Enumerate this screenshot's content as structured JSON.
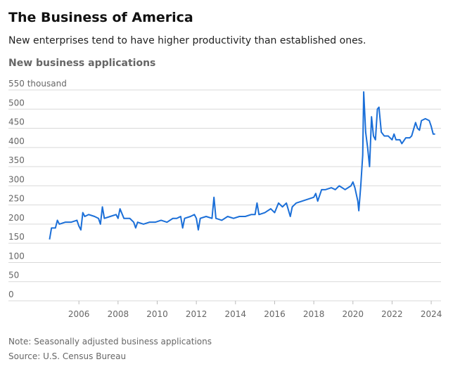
{
  "chart_data": {
    "type": "line",
    "title": "The Business of America",
    "subtitle": "New enterprises tend to have higher productivity than established ones.",
    "chart_title": "New business applications",
    "note": "Note: Seasonally adjusted business applications",
    "source": "Source: U.S. Census Bureau",
    "xlim": [
      2002.4,
      2024.5
    ],
    "ylim": [
      0,
      550
    ],
    "xticks": [
      2006,
      2008,
      2010,
      2012,
      2014,
      2016,
      2018,
      2020,
      2022,
      2024
    ],
    "yticks": [
      0,
      50,
      100,
      150,
      200,
      250,
      300,
      350,
      400,
      450,
      500,
      {
        "value": 550,
        "label": "550 thousand"
      }
    ],
    "grid": true,
    "x": [
      2004.5,
      2004.6,
      2004.8,
      2004.9,
      2005.0,
      2005.3,
      2005.6,
      2005.9,
      2006.0,
      2006.1,
      2006.2,
      2006.3,
      2006.5,
      2006.8,
      2007.0,
      2007.1,
      2007.2,
      2007.3,
      2007.6,
      2007.9,
      2008.0,
      2008.1,
      2008.3,
      2008.6,
      2008.8,
      2008.9,
      2009.0,
      2009.3,
      2009.6,
      2009.9,
      2010.2,
      2010.5,
      2010.8,
      2011.0,
      2011.2,
      2011.3,
      2011.4,
      2011.7,
      2011.9,
      2012.0,
      2012.1,
      2012.2,
      2012.5,
      2012.8,
      2012.9,
      2013.0,
      2013.3,
      2013.6,
      2013.9,
      2014.2,
      2014.5,
      2014.8,
      2015.0,
      2015.1,
      2015.2,
      2015.5,
      2015.8,
      2016.0,
      2016.2,
      2016.4,
      2016.6,
      2016.8,
      2016.9,
      2017.1,
      2017.4,
      2017.7,
      2018.0,
      2018.1,
      2018.2,
      2018.4,
      2018.6,
      2018.9,
      2019.1,
      2019.3,
      2019.6,
      2019.9,
      2020.0,
      2020.1,
      2020.25,
      2020.3,
      2020.4,
      2020.5,
      2020.55,
      2020.65,
      2020.75,
      2020.85,
      2020.95,
      2021.05,
      2021.15,
      2021.25,
      2021.33,
      2021.45,
      2021.6,
      2021.8,
      2022.0,
      2022.1,
      2022.2,
      2022.4,
      2022.5,
      2022.7,
      2022.9,
      2023.0,
      2023.2,
      2023.3,
      2023.4,
      2023.5,
      2023.7,
      2023.9,
      2024.0,
      2024.1,
      2024.2
    ],
    "series": [
      {
        "name": "New business applications",
        "color": "#1b6fd8",
        "values": [
          160,
          190,
          190,
          210,
          200,
          205,
          205,
          210,
          195,
          185,
          230,
          220,
          225,
          220,
          215,
          200,
          245,
          215,
          220,
          225,
          215,
          240,
          215,
          215,
          205,
          190,
          205,
          200,
          205,
          205,
          210,
          205,
          215,
          215,
          220,
          190,
          215,
          220,
          225,
          215,
          185,
          215,
          220,
          215,
          270,
          215,
          210,
          220,
          215,
          220,
          220,
          225,
          225,
          255,
          225,
          230,
          240,
          230,
          255,
          245,
          255,
          220,
          245,
          255,
          260,
          265,
          270,
          280,
          260,
          290,
          290,
          295,
          290,
          300,
          290,
          300,
          310,
          295,
          260,
          235,
          300,
          380,
          545,
          440,
          400,
          350,
          480,
          430,
          420,
          500,
          505,
          440,
          430,
          430,
          420,
          435,
          420,
          420,
          410,
          425,
          425,
          430,
          465,
          450,
          445,
          470,
          475,
          470,
          455,
          435,
          435
        ]
      }
    ]
  }
}
